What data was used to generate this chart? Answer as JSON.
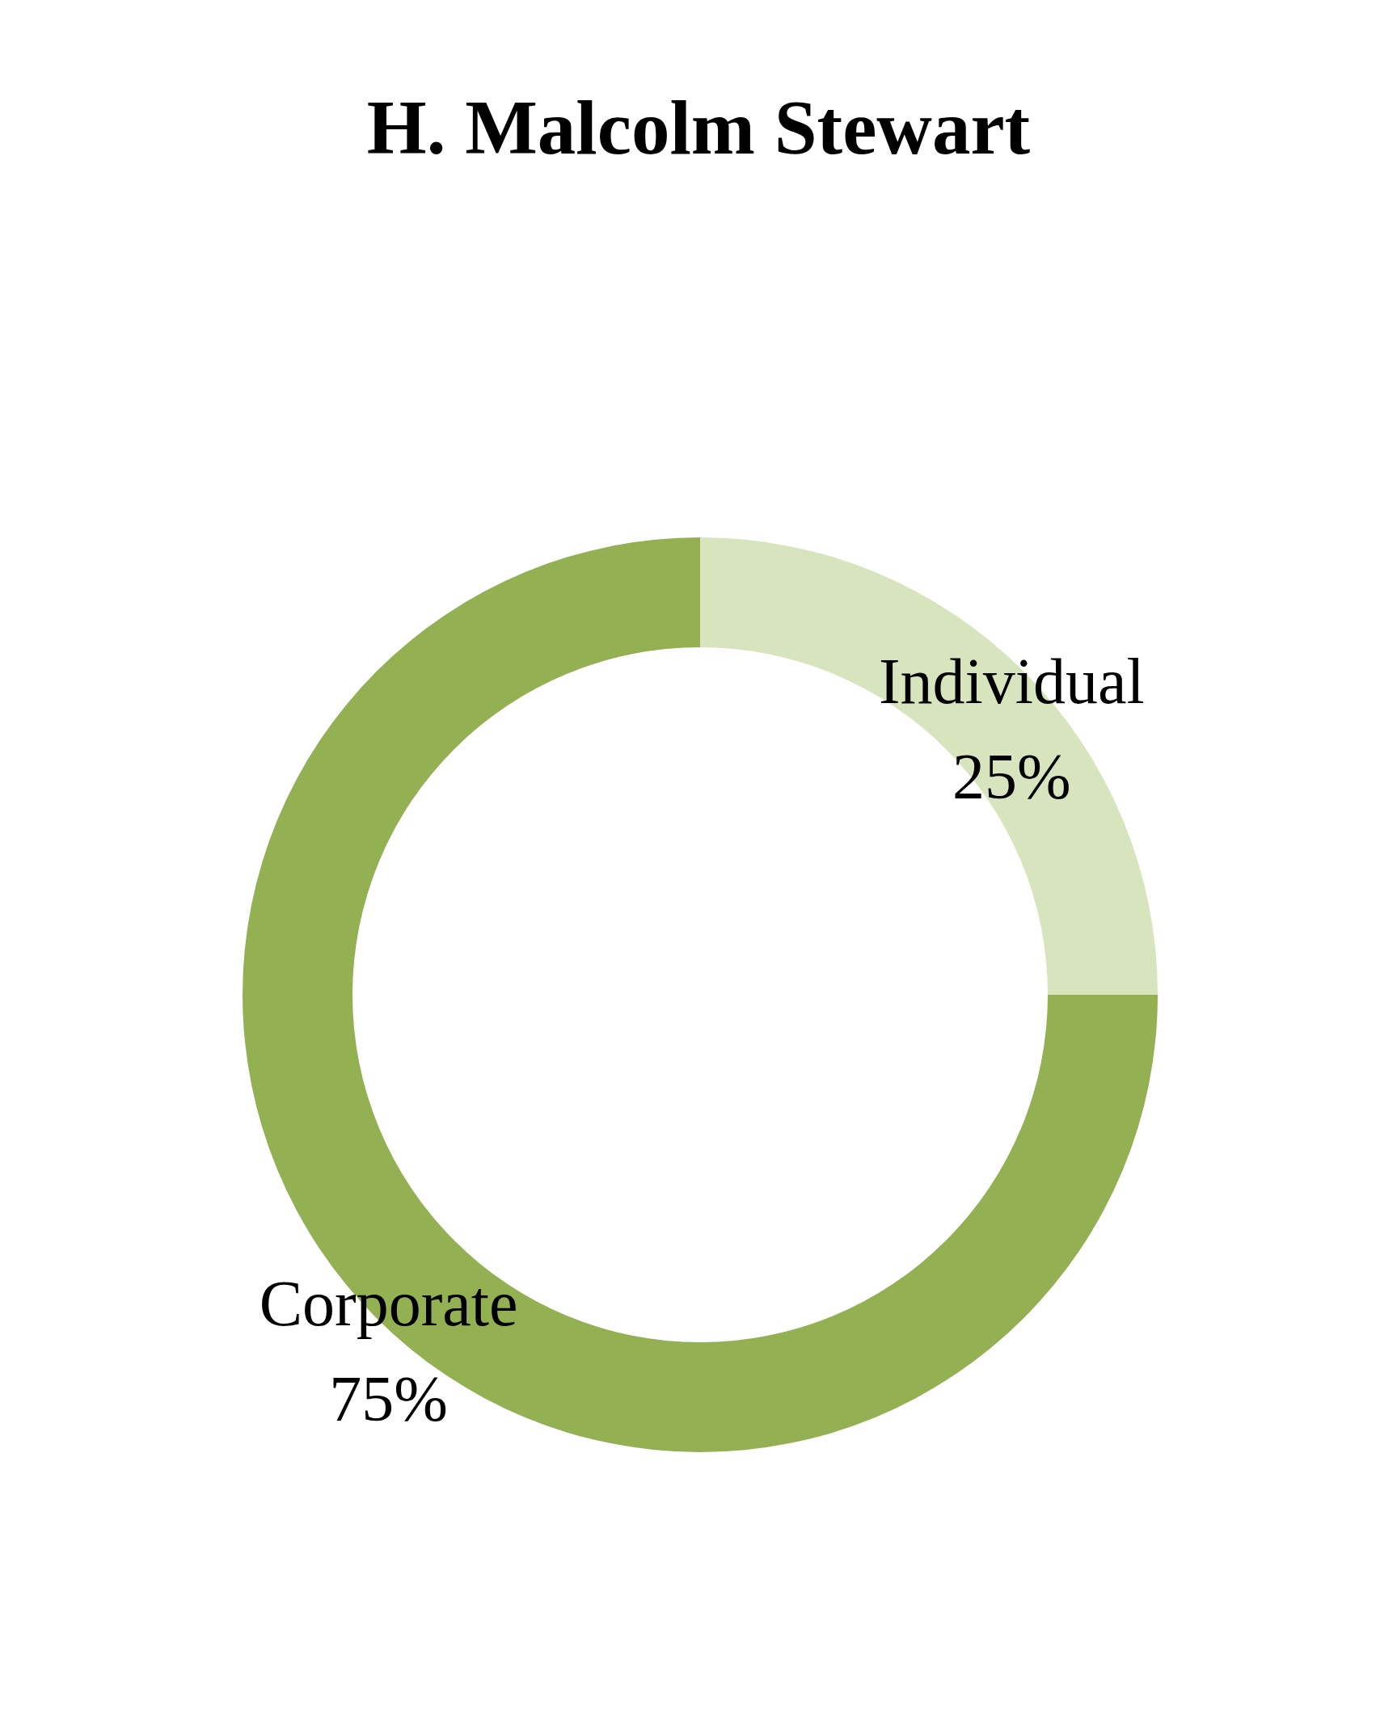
{
  "chart_data": {
    "type": "donut",
    "title": "H. Malcolm Stewart",
    "categories": [
      "Individual",
      "Corporate"
    ],
    "values": [
      25,
      75
    ],
    "colors": [
      "#d7e4bd",
      "#93b053"
    ],
    "value_labels": [
      "25%",
      "75%"
    ],
    "legend": false
  }
}
